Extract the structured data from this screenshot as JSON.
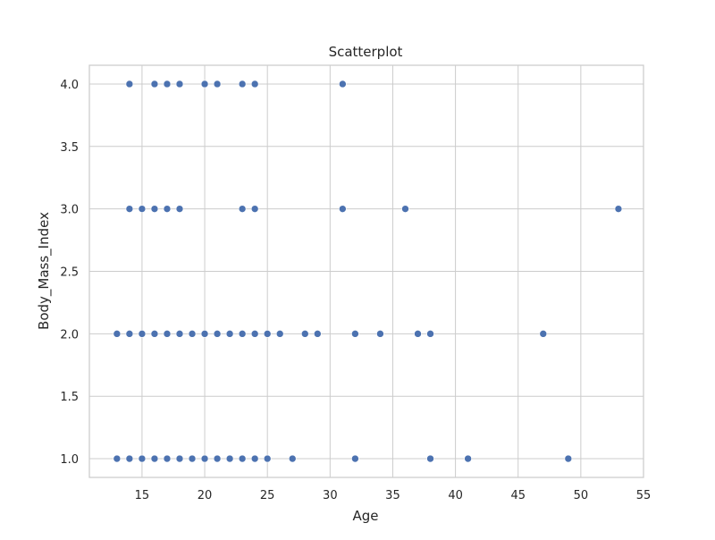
{
  "chart_data": {
    "type": "scatter",
    "title": "Scatterplot",
    "xlabel": "Age",
    "ylabel": "Body_Mass_Index",
    "xlim": [
      10.8,
      55.0
    ],
    "ylim": [
      0.85,
      4.15
    ],
    "xticks": [
      15,
      20,
      25,
      30,
      35,
      40,
      45,
      50,
      55
    ],
    "xtick_labels": [
      "15",
      "20",
      "25",
      "30",
      "35",
      "40",
      "45",
      "50",
      "55"
    ],
    "yticks": [
      1.0,
      1.5,
      2.0,
      2.5,
      3.0,
      3.5,
      4.0
    ],
    "ytick_labels": [
      "1.0",
      "1.5",
      "2.0",
      "2.5",
      "3.0",
      "3.5",
      "4.0"
    ],
    "grid": true,
    "colors": {
      "point": "#4c72b0",
      "grid": "#cccccc",
      "spine": "#cccccc",
      "text": "#262626",
      "background": "#ffffff"
    },
    "points": [
      {
        "x": 14,
        "y": 4
      },
      {
        "x": 16,
        "y": 4
      },
      {
        "x": 17,
        "y": 4
      },
      {
        "x": 18,
        "y": 4
      },
      {
        "x": 20,
        "y": 4
      },
      {
        "x": 21,
        "y": 4
      },
      {
        "x": 23,
        "y": 4
      },
      {
        "x": 24,
        "y": 4
      },
      {
        "x": 31,
        "y": 4
      },
      {
        "x": 14,
        "y": 3
      },
      {
        "x": 15,
        "y": 3
      },
      {
        "x": 16,
        "y": 3
      },
      {
        "x": 17,
        "y": 3
      },
      {
        "x": 18,
        "y": 3
      },
      {
        "x": 23,
        "y": 3
      },
      {
        "x": 24,
        "y": 3
      },
      {
        "x": 31,
        "y": 3
      },
      {
        "x": 36,
        "y": 3
      },
      {
        "x": 53,
        "y": 3
      },
      {
        "x": 13,
        "y": 2
      },
      {
        "x": 14,
        "y": 2
      },
      {
        "x": 15,
        "y": 2
      },
      {
        "x": 16,
        "y": 2
      },
      {
        "x": 17,
        "y": 2
      },
      {
        "x": 18,
        "y": 2
      },
      {
        "x": 19,
        "y": 2
      },
      {
        "x": 20,
        "y": 2
      },
      {
        "x": 21,
        "y": 2
      },
      {
        "x": 22,
        "y": 2
      },
      {
        "x": 23,
        "y": 2
      },
      {
        "x": 24,
        "y": 2
      },
      {
        "x": 25,
        "y": 2
      },
      {
        "x": 26,
        "y": 2
      },
      {
        "x": 28,
        "y": 2
      },
      {
        "x": 29,
        "y": 2
      },
      {
        "x": 32,
        "y": 2
      },
      {
        "x": 34,
        "y": 2
      },
      {
        "x": 37,
        "y": 2
      },
      {
        "x": 38,
        "y": 2
      },
      {
        "x": 47,
        "y": 2
      },
      {
        "x": 13,
        "y": 1
      },
      {
        "x": 14,
        "y": 1
      },
      {
        "x": 15,
        "y": 1
      },
      {
        "x": 16,
        "y": 1
      },
      {
        "x": 17,
        "y": 1
      },
      {
        "x": 18,
        "y": 1
      },
      {
        "x": 19,
        "y": 1
      },
      {
        "x": 20,
        "y": 1
      },
      {
        "x": 21,
        "y": 1
      },
      {
        "x": 22,
        "y": 1
      },
      {
        "x": 23,
        "y": 1
      },
      {
        "x": 24,
        "y": 1
      },
      {
        "x": 25,
        "y": 1
      },
      {
        "x": 27,
        "y": 1
      },
      {
        "x": 32,
        "y": 1
      },
      {
        "x": 38,
        "y": 1
      },
      {
        "x": 41,
        "y": 1
      },
      {
        "x": 49,
        "y": 1
      }
    ]
  }
}
